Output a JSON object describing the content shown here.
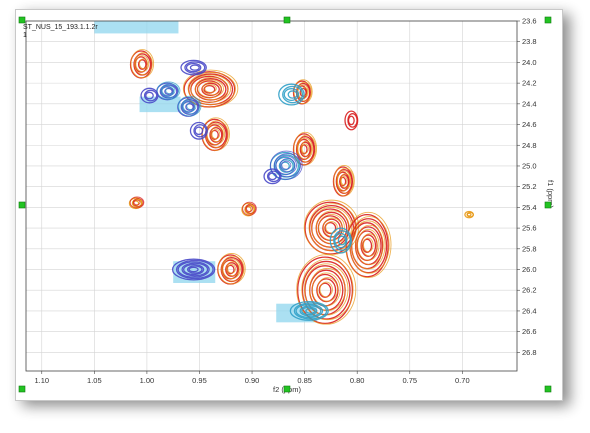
{
  "plot": {
    "title_line1": "ST_NUS_15_193.1.1.2r",
    "title_line2": "1",
    "x_axis_label": "f2 (ppm)",
    "y_axis_label": "f1 (ppm)",
    "x_ticks": [
      "1.10",
      "1.05",
      "1.00",
      "0.95",
      "0.90",
      "0.85",
      "0.80",
      "0.75",
      "0.70"
    ],
    "y_ticks": [
      "23.6",
      "23.8",
      "24.0",
      "24.2",
      "24.4",
      "24.6",
      "24.8",
      "25.0",
      "25.2",
      "25.4",
      "25.6",
      "25.8",
      "26.0",
      "26.2",
      "26.4",
      "26.6",
      "26.8"
    ]
  },
  "chart_data": {
    "type": "scatter",
    "xlabel": "f2 (ppm)",
    "ylabel": "f1 (ppm)",
    "xlim": [
      1.115,
      0.648
    ],
    "ylim": [
      23.6,
      26.98
    ],
    "x_reversed": true,
    "y_reversed": true,
    "grid": true,
    "colors": {
      "red": "#d81e1e",
      "orange": "#e89a18",
      "blue": "#4848c8",
      "cyan": "#30a0c8",
      "highlight": "#8fd6ee"
    },
    "peaks": [
      {
        "x": 1.005,
        "y": 24.02,
        "rx": 0.01,
        "ry": 0.13,
        "colors": [
          "red",
          "orange"
        ]
      },
      {
        "x": 0.98,
        "y": 24.28,
        "rx": 0.01,
        "ry": 0.08,
        "colors": [
          "blue",
          "cyan"
        ]
      },
      {
        "x": 0.997,
        "y": 24.32,
        "rx": 0.008,
        "ry": 0.07,
        "colors": [
          "blue"
        ]
      },
      {
        "x": 0.94,
        "y": 24.26,
        "rx": 0.024,
        "ry": 0.17,
        "colors": [
          "red",
          "orange"
        ]
      },
      {
        "x": 0.955,
        "y": 24.05,
        "rx": 0.012,
        "ry": 0.07,
        "colors": [
          "blue"
        ]
      },
      {
        "x": 0.96,
        "y": 24.43,
        "rx": 0.01,
        "ry": 0.09,
        "colors": [
          "blue",
          "cyan"
        ]
      },
      {
        "x": 0.935,
        "y": 24.7,
        "rx": 0.012,
        "ry": 0.15,
        "colors": [
          "red",
          "orange"
        ]
      },
      {
        "x": 0.95,
        "y": 24.66,
        "rx": 0.008,
        "ry": 0.08,
        "colors": [
          "blue"
        ]
      },
      {
        "x": 0.852,
        "y": 24.29,
        "rx": 0.008,
        "ry": 0.11,
        "colors": [
          "red",
          "orange"
        ]
      },
      {
        "x": 0.862,
        "y": 24.31,
        "rx": 0.012,
        "ry": 0.1,
        "colors": [
          "cyan"
        ]
      },
      {
        "x": 0.805,
        "y": 24.56,
        "rx": 0.006,
        "ry": 0.09,
        "colors": [
          "red"
        ]
      },
      {
        "x": 0.85,
        "y": 24.84,
        "rx": 0.01,
        "ry": 0.15,
        "colors": [
          "red",
          "orange"
        ]
      },
      {
        "x": 0.868,
        "y": 25.0,
        "rx": 0.014,
        "ry": 0.13,
        "colors": [
          "cyan",
          "blue"
        ]
      },
      {
        "x": 0.88,
        "y": 25.1,
        "rx": 0.008,
        "ry": 0.07,
        "colors": [
          "blue"
        ]
      },
      {
        "x": 0.813,
        "y": 25.15,
        "rx": 0.009,
        "ry": 0.14,
        "colors": [
          "red",
          "orange"
        ]
      },
      {
        "x": 1.01,
        "y": 25.36,
        "rx": 0.006,
        "ry": 0.05,
        "colors": [
          "orange",
          "red"
        ]
      },
      {
        "x": 0.903,
        "y": 25.42,
        "rx": 0.006,
        "ry": 0.06,
        "colors": [
          "orange",
          "red"
        ]
      },
      {
        "x": 0.825,
        "y": 25.6,
        "rx": 0.024,
        "ry": 0.25,
        "colors": [
          "red",
          "orange"
        ]
      },
      {
        "x": 0.79,
        "y": 25.77,
        "rx": 0.02,
        "ry": 0.3,
        "colors": [
          "red",
          "orange"
        ]
      },
      {
        "x": 0.815,
        "y": 25.72,
        "rx": 0.01,
        "ry": 0.12,
        "colors": [
          "cyan"
        ]
      },
      {
        "x": 0.955,
        "y": 26.0,
        "rx": 0.02,
        "ry": 0.1,
        "colors": [
          "blue"
        ]
      },
      {
        "x": 0.92,
        "y": 26.0,
        "rx": 0.012,
        "ry": 0.14,
        "colors": [
          "red",
          "orange"
        ]
      },
      {
        "x": 0.83,
        "y": 26.2,
        "rx": 0.026,
        "ry": 0.32,
        "colors": [
          "red",
          "orange"
        ]
      },
      {
        "x": 0.845,
        "y": 26.4,
        "rx": 0.018,
        "ry": 0.09,
        "colors": [
          "cyan"
        ]
      },
      {
        "x": 0.693,
        "y": 25.47,
        "rx": 0.004,
        "ry": 0.03,
        "colors": [
          "orange"
        ]
      }
    ],
    "highlight_regions": [
      {
        "x1": 1.05,
        "x2": 0.97,
        "y1": 23.6,
        "y2": 23.72
      },
      {
        "x1": 1.007,
        "x2": 0.968,
        "y1": 24.33,
        "y2": 24.48
      },
      {
        "x1": 0.975,
        "x2": 0.935,
        "y1": 25.92,
        "y2": 26.13
      },
      {
        "x1": 0.877,
        "x2": 0.838,
        "y1": 26.33,
        "y2": 26.51
      }
    ]
  }
}
